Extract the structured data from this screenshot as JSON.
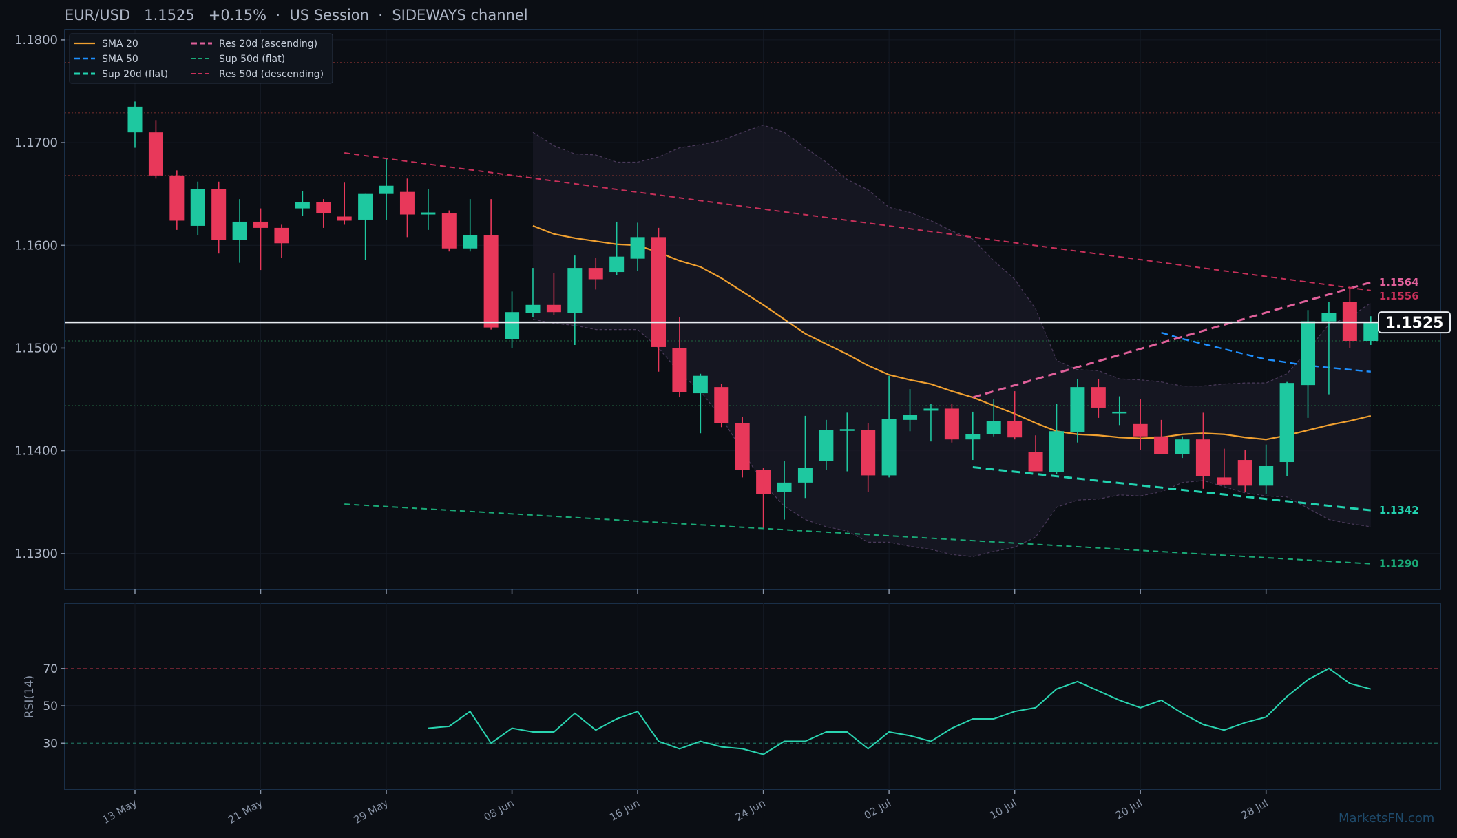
{
  "header": {
    "symbol": "EUR/USD",
    "price": "1.1525",
    "change": "+0.15%",
    "session": "US Session",
    "regime": "SIDEWAYS channel"
  },
  "watermark": "MarketsFN.com",
  "colors": {
    "background": "#0b0e14",
    "bull": "#1ec8a0",
    "bear": "#e8385a",
    "sma20": "#f0a030",
    "sma50": "#1e90ff",
    "res20": "#e0609a",
    "res50": "#c8305a",
    "sup20": "#22d3b0",
    "sup50": "#1aaa77",
    "rsi": "#2ad4b0"
  },
  "chart_data": [
    {
      "type": "candlestick",
      "title": "EUR/USD 1.1525 +0.15% · US Session · SIDEWAYS channel",
      "ylim": [
        1.1265,
        1.181
      ],
      "yticks": [
        1.13,
        1.14,
        1.15,
        1.16,
        1.17,
        1.18
      ],
      "ytick_labels": [
        "1.1300",
        "1.1400",
        "1.1500",
        "1.1600",
        "1.1700",
        "1.1800"
      ],
      "xtick_labels": [
        {
          "label": "13 May",
          "index": 0
        },
        {
          "label": "21 May",
          "index": 6
        },
        {
          "label": "29 May",
          "index": 12
        },
        {
          "label": "08 Jun",
          "index": 18
        },
        {
          "label": "16 Jun",
          "index": 24
        },
        {
          "label": "24 Jun",
          "index": 30
        },
        {
          "label": "02 Jul",
          "index": 36
        },
        {
          "label": "10 Jul",
          "index": 42
        },
        {
          "label": "20 Jul",
          "index": 48
        },
        {
          "label": "28 Jul",
          "index": 54
        }
      ],
      "legend": {
        "position": "top-left",
        "entries": [
          "SMA 20",
          "Res 20d (ascending)",
          "SMA 50",
          "Sup 50d (flat)",
          "Sup 20d (flat)",
          "Res 50d (descending)"
        ]
      },
      "candles": [
        {
          "o": 1.171,
          "h": 1.174,
          "l": 1.1695,
          "c": 1.1735
        },
        {
          "o": 1.171,
          "h": 1.1722,
          "l": 1.1665,
          "c": 1.1668
        },
        {
          "o": 1.1668,
          "h": 1.1673,
          "l": 1.1615,
          "c": 1.1624
        },
        {
          "o": 1.1619,
          "h": 1.1662,
          "l": 1.161,
          "c": 1.1655
        },
        {
          "o": 1.1655,
          "h": 1.1662,
          "l": 1.1592,
          "c": 1.1605
        },
        {
          "o": 1.1605,
          "h": 1.1645,
          "l": 1.1583,
          "c": 1.1623
        },
        {
          "o": 1.1623,
          "h": 1.1636,
          "l": 1.1576,
          "c": 1.1617
        },
        {
          "o": 1.1617,
          "h": 1.162,
          "l": 1.1588,
          "c": 1.1602
        },
        {
          "o": 1.1636,
          "h": 1.1653,
          "l": 1.1629,
          "c": 1.1642
        },
        {
          "o": 1.1642,
          "h": 1.1645,
          "l": 1.1617,
          "c": 1.1631
        },
        {
          "o": 1.1628,
          "h": 1.1661,
          "l": 1.162,
          "c": 1.1624
        },
        {
          "o": 1.1625,
          "h": 1.165,
          "l": 1.1586,
          "c": 1.165
        },
        {
          "o": 1.165,
          "h": 1.1684,
          "l": 1.1625,
          "c": 1.1658
        },
        {
          "o": 1.1652,
          "h": 1.1665,
          "l": 1.1608,
          "c": 1.163
        },
        {
          "o": 1.163,
          "h": 1.1655,
          "l": 1.1615,
          "c": 1.1632
        },
        {
          "o": 1.1631,
          "h": 1.1634,
          "l": 1.1594,
          "c": 1.1597
        },
        {
          "o": 1.1597,
          "h": 1.1645,
          "l": 1.1594,
          "c": 1.161
        },
        {
          "o": 1.161,
          "h": 1.1645,
          "l": 1.1518,
          "c": 1.152
        },
        {
          "o": 1.1509,
          "h": 1.1555,
          "l": 1.15,
          "c": 1.1535
        },
        {
          "o": 1.1534,
          "h": 1.1578,
          "l": 1.153,
          "c": 1.1542
        },
        {
          "o": 1.1542,
          "h": 1.1573,
          "l": 1.1532,
          "c": 1.1535
        },
        {
          "o": 1.1534,
          "h": 1.159,
          "l": 1.1503,
          "c": 1.1578
        },
        {
          "o": 1.1578,
          "h": 1.1588,
          "l": 1.1557,
          "c": 1.1567
        },
        {
          "o": 1.1574,
          "h": 1.1623,
          "l": 1.1571,
          "c": 1.1589
        },
        {
          "o": 1.1587,
          "h": 1.1622,
          "l": 1.1575,
          "c": 1.1608
        },
        {
          "o": 1.1608,
          "h": 1.1617,
          "l": 1.1477,
          "c": 1.1501
        },
        {
          "o": 1.15,
          "h": 1.153,
          "l": 1.1452,
          "c": 1.1457
        },
        {
          "o": 1.1456,
          "h": 1.1475,
          "l": 1.1417,
          "c": 1.1473
        },
        {
          "o": 1.1462,
          "h": 1.1465,
          "l": 1.1423,
          "c": 1.1427
        },
        {
          "o": 1.1427,
          "h": 1.1433,
          "l": 1.1374,
          "c": 1.1381
        },
        {
          "o": 1.1381,
          "h": 1.1383,
          "l": 1.1325,
          "c": 1.1358
        },
        {
          "o": 1.136,
          "h": 1.139,
          "l": 1.1333,
          "c": 1.1369
        },
        {
          "o": 1.1369,
          "h": 1.1434,
          "l": 1.1354,
          "c": 1.1383
        },
        {
          "o": 1.139,
          "h": 1.143,
          "l": 1.1381,
          "c": 1.142
        },
        {
          "o": 1.142,
          "h": 1.1437,
          "l": 1.138,
          "c": 1.1421
        },
        {
          "o": 1.142,
          "h": 1.1427,
          "l": 1.136,
          "c": 1.1376
        },
        {
          "o": 1.1376,
          "h": 1.1473,
          "l": 1.1374,
          "c": 1.1431
        },
        {
          "o": 1.143,
          "h": 1.146,
          "l": 1.1419,
          "c": 1.1435
        },
        {
          "o": 1.1439,
          "h": 1.1446,
          "l": 1.1409,
          "c": 1.1441
        },
        {
          "o": 1.1441,
          "h": 1.1446,
          "l": 1.1408,
          "c": 1.1411
        },
        {
          "o": 1.1411,
          "h": 1.1438,
          "l": 1.1391,
          "c": 1.1416
        },
        {
          "o": 1.1416,
          "h": 1.145,
          "l": 1.1414,
          "c": 1.1429
        },
        {
          "o": 1.1429,
          "h": 1.1458,
          "l": 1.1411,
          "c": 1.1413
        },
        {
          "o": 1.1399,
          "h": 1.1415,
          "l": 1.1383,
          "c": 1.138
        },
        {
          "o": 1.1379,
          "h": 1.1446,
          "l": 1.1377,
          "c": 1.1419
        },
        {
          "o": 1.1418,
          "h": 1.147,
          "l": 1.1408,
          "c": 1.1462
        },
        {
          "o": 1.1462,
          "h": 1.147,
          "l": 1.1432,
          "c": 1.1442
        },
        {
          "o": 1.1437,
          "h": 1.1453,
          "l": 1.1425,
          "c": 1.1438
        },
        {
          "o": 1.1426,
          "h": 1.145,
          "l": 1.1401,
          "c": 1.1414
        },
        {
          "o": 1.1414,
          "h": 1.143,
          "l": 1.1398,
          "c": 1.1397
        },
        {
          "o": 1.1397,
          "h": 1.1414,
          "l": 1.1393,
          "c": 1.1411
        },
        {
          "o": 1.1411,
          "h": 1.1437,
          "l": 1.1363,
          "c": 1.1375
        },
        {
          "o": 1.1374,
          "h": 1.1402,
          "l": 1.1366,
          "c": 1.1367
        },
        {
          "o": 1.1391,
          "h": 1.1401,
          "l": 1.136,
          "c": 1.1366
        },
        {
          "o": 1.1366,
          "h": 1.1406,
          "l": 1.1358,
          "c": 1.1385
        },
        {
          "o": 1.1389,
          "h": 1.1467,
          "l": 1.1375,
          "c": 1.1466
        },
        {
          "o": 1.1464,
          "h": 1.1537,
          "l": 1.1432,
          "c": 1.1526
        },
        {
          "o": 1.1526,
          "h": 1.1545,
          "l": 1.1455,
          "c": 1.1534
        },
        {
          "o": 1.1545,
          "h": 1.156,
          "l": 1.15,
          "c": 1.1507
        },
        {
          "o": 1.1507,
          "h": 1.1531,
          "l": 1.1503,
          "c": 1.1525
        }
      ],
      "sma20": {
        "start_index": 19,
        "values": [
          1.1619,
          1.1611,
          1.1607,
          1.1604,
          1.1601,
          1.16,
          1.1593,
          1.1585,
          1.1579,
          1.1568,
          1.1555,
          1.1542,
          1.1528,
          1.1514,
          1.1504,
          1.1494,
          1.1483,
          1.1474,
          1.1469,
          1.1465,
          1.1458,
          1.1452,
          1.1444,
          1.1436,
          1.1427,
          1.1419,
          1.1416,
          1.1415,
          1.1413,
          1.1412,
          1.1413,
          1.1416,
          1.1417,
          1.1416,
          1.1413,
          1.1411,
          1.1415,
          1.142,
          1.1425,
          1.1429,
          1.1434
        ]
      },
      "sma50": {
        "start_index": 49,
        "values": [
          1.1515,
          1.1509,
          1.1504,
          1.1499,
          1.1494,
          1.1489,
          1.1486,
          1.1483,
          1.1481,
          1.1479,
          1.1477
        ]
      },
      "bb_upper": {
        "start_index": 19,
        "values": [
          1.171,
          1.1697,
          1.1689,
          1.1688,
          1.1681,
          1.1681,
          1.1686,
          1.1695,
          1.1698,
          1.1702,
          1.171,
          1.1717,
          1.171,
          1.1695,
          1.1681,
          1.1664,
          1.1654,
          1.1637,
          1.1632,
          1.1624,
          1.1614,
          1.1606,
          1.1585,
          1.1567,
          1.1538,
          1.1488,
          1.1479,
          1.1478,
          1.147,
          1.1469,
          1.1467,
          1.1463,
          1.1463,
          1.1465,
          1.1466,
          1.1466,
          1.1475,
          1.1498,
          1.1523,
          1.153,
          1.1544
        ]
      },
      "bb_lower": {
        "start_index": 19,
        "values": [
          1.1528,
          1.1524,
          1.1522,
          1.1518,
          1.1518,
          1.1518,
          1.15,
          1.1476,
          1.1458,
          1.1432,
          1.14,
          1.1368,
          1.1346,
          1.1333,
          1.1326,
          1.1322,
          1.1311,
          1.1311,
          1.1307,
          1.1304,
          1.1299,
          1.1297,
          1.1302,
          1.1306,
          1.1316,
          1.1345,
          1.1352,
          1.1353,
          1.1357,
          1.1356,
          1.136,
          1.1369,
          1.1371,
          1.1365,
          1.1359,
          1.1356,
          1.1355,
          1.1344,
          1.1333,
          1.1329,
          1.1326
        ]
      },
      "trendlines": [
        {
          "name": "Res 20d (ascending)",
          "x": [
            40,
            59
          ],
          "y": [
            1.1452,
            1.1564
          ],
          "label": "1.1564",
          "style": "dashed"
        },
        {
          "name": "SMA 50 segment",
          "x": [
            49,
            59
          ],
          "y": [
            1.1515,
            1.1477
          ],
          "style": "dashed"
        },
        {
          "name": "Sup 20d (flat)",
          "x": [
            40,
            59
          ],
          "y": [
            1.1384,
            1.1342
          ],
          "label": "1.1342",
          "style": "dashed"
        },
        {
          "name": "Sup 50d (flat)",
          "x": [
            10,
            59
          ],
          "y": [
            1.1348,
            1.129
          ],
          "label": "1.1290",
          "style": "dashed-thin"
        },
        {
          "name": "Res 50d (descending)",
          "x": [
            10,
            59
          ],
          "y": [
            1.169,
            1.1556
          ],
          "label": "1.1556",
          "style": "dashed-thin"
        }
      ],
      "horizontal_levels": [
        {
          "y": 1.1778,
          "color": "#6b2a2a"
        },
        {
          "y": 1.1729,
          "color": "#6b2a2a"
        },
        {
          "y": 1.1668,
          "color": "#6b2a2a"
        },
        {
          "y": 1.1507,
          "color": "#1f5a3a"
        },
        {
          "y": 1.1444,
          "color": "#1f5a3a"
        }
      ],
      "current_price": {
        "value": 1.1525,
        "label": "1.1525"
      }
    },
    {
      "type": "line",
      "ylabel": "RSI(14)",
      "ylim": [
        5,
        105
      ],
      "yticks": [
        30,
        50,
        70
      ],
      "ytick_labels": [
        "30",
        "50",
        "70"
      ],
      "reference_lines": [
        70,
        30
      ],
      "series": [
        {
          "start_index": 14,
          "values": [
            38,
            39,
            47,
            30,
            38,
            36,
            36,
            46,
            37,
            43,
            47,
            31,
            27,
            31,
            28,
            27,
            24,
            31,
            31,
            36,
            36,
            27,
            36,
            34,
            31,
            38,
            43,
            43,
            47,
            49,
            59,
            63,
            58,
            53,
            49,
            53,
            46,
            40,
            37,
            41,
            44,
            55,
            64,
            70,
            62,
            59
          ]
        }
      ]
    }
  ]
}
